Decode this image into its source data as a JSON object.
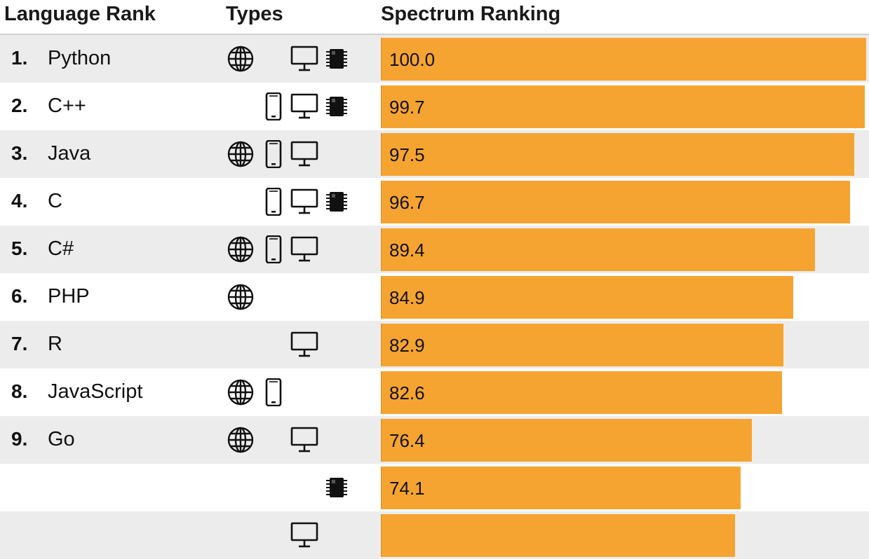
{
  "header": {
    "rank_label": "Language Rank",
    "types_label": "Types",
    "spectrum_label": "Spectrum Ranking"
  },
  "icons": {
    "web": "globe-icon",
    "mobile": "mobile-phone-icon",
    "desktop": "desktop-monitor-icon",
    "embedded": "chip-icon"
  },
  "colors": {
    "bar": "#f6a431",
    "row_alt": "#ececec"
  },
  "chart_data": {
    "type": "bar",
    "orientation": "horizontal",
    "xlim": [
      0,
      100
    ],
    "rows": [
      {
        "rank": "1.",
        "language": "Python",
        "value": 100.0,
        "value_label": "100.0",
        "types": [
          "web",
          "desktop",
          "embedded"
        ]
      },
      {
        "rank": "2.",
        "language": "C++",
        "value": 99.7,
        "value_label": "99.7",
        "types": [
          "mobile",
          "desktop",
          "embedded"
        ]
      },
      {
        "rank": "3.",
        "language": "Java",
        "value": 97.5,
        "value_label": "97.5",
        "types": [
          "web",
          "mobile",
          "desktop"
        ]
      },
      {
        "rank": "4.",
        "language": "C",
        "value": 96.7,
        "value_label": "96.7",
        "types": [
          "mobile",
          "desktop",
          "embedded"
        ]
      },
      {
        "rank": "5.",
        "language": "C#",
        "value": 89.4,
        "value_label": "89.4",
        "types": [
          "web",
          "mobile",
          "desktop"
        ]
      },
      {
        "rank": "6.",
        "language": "PHP",
        "value": 84.9,
        "value_label": "84.9",
        "types": [
          "web"
        ]
      },
      {
        "rank": "7.",
        "language": "R",
        "value": 82.9,
        "value_label": "82.9",
        "types": [
          "desktop"
        ]
      },
      {
        "rank": "8.",
        "language": "JavaScript",
        "value": 82.6,
        "value_label": "82.6",
        "types": [
          "web",
          "mobile"
        ]
      },
      {
        "rank": "9.",
        "language": "Go",
        "value": 76.4,
        "value_label": "76.4",
        "types": [
          "web",
          "desktop"
        ]
      },
      {
        "rank": "",
        "language": "",
        "value": 74.1,
        "value_label": "74.1",
        "types": [
          "embedded"
        ]
      },
      {
        "rank": "",
        "language": "",
        "value": 73.0,
        "value_label": "",
        "types": [
          "desktop"
        ]
      }
    ]
  }
}
